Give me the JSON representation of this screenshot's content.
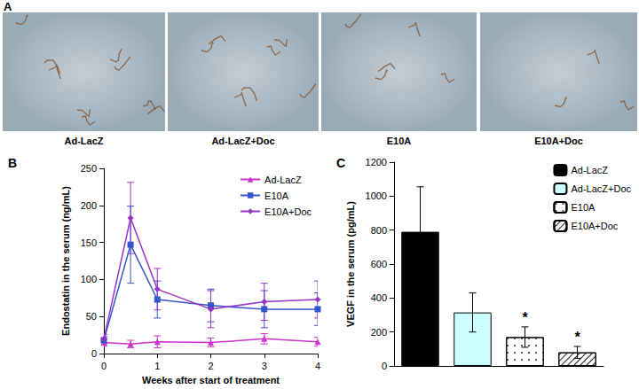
{
  "panel_a": {
    "label": "A",
    "captions": [
      "Ad-LacZ",
      "Ad-LacZ+Doc",
      "E10A",
      "E10A+Doc"
    ]
  },
  "chart_data": [
    {
      "type": "line",
      "title": "B",
      "x_label": "Weeks after start of treatment",
      "y_label": "Endostatin in the serum (ng/mL)",
      "x": [
        0,
        0.5,
        1,
        2,
        3,
        4
      ],
      "series": [
        {
          "name": "Ad-LacZ",
          "color": "#cc33cc",
          "marker": "triangle",
          "values": [
            15,
            13,
            16,
            15,
            20,
            16
          ],
          "errors": [
            5,
            5,
            8,
            6,
            7,
            6
          ]
        },
        {
          "name": "E10A",
          "color": "#3355cc",
          "marker": "square",
          "values": [
            18,
            147,
            73,
            65,
            60,
            60
          ],
          "errors": [
            5,
            52,
            25,
            22,
            25,
            22
          ]
        },
        {
          "name": "E10A+Doc",
          "color": "#9933cc",
          "marker": "diamond",
          "values": [
            20,
            183,
            87,
            60,
            70,
            73
          ],
          "errors": [
            6,
            48,
            28,
            25,
            25,
            25
          ]
        }
      ],
      "xlim": [
        0,
        4
      ],
      "xticks": [
        0,
        1,
        2,
        3,
        4
      ],
      "ylim": [
        0,
        250
      ],
      "yticks": [
        0,
        50,
        100,
        150,
        200,
        250
      ],
      "grid": false,
      "legend": "upper right"
    },
    {
      "type": "bar",
      "title": "C",
      "y_label": "VEGF in the serum (pg/mL)",
      "categories": [
        null,
        null,
        null,
        null
      ],
      "series": [
        {
          "name": "Ad-LacZ",
          "color": "#000000",
          "values": [
            790,
            null,
            null,
            null
          ],
          "errors": [
            265,
            null,
            null,
            null
          ]
        },
        {
          "name": "Ad-LacZ+Doc",
          "color": "#ccffff",
          "values": [
            null,
            315,
            null,
            null
          ],
          "errors": [
            null,
            115,
            null,
            null
          ]
        },
        {
          "name": "E10A",
          "color": "#ffffff",
          "values": [
            null,
            null,
            170,
            null
          ],
          "errors": [
            null,
            null,
            60,
            null
          ]
        },
        {
          "name": "E10A+Doc",
          "color": "#ffffff",
          "values": [
            null,
            null,
            null,
            80
          ],
          "errors": [
            null,
            null,
            null,
            35
          ]
        }
      ],
      "ylim": [
        0,
        1200
      ],
      "yticks": [
        0,
        200,
        400,
        600,
        800,
        1000,
        1200
      ],
      "grid": false,
      "legend": "upper right",
      "tick_labels": "y",
      "annotations": [
        {
          "text": "*",
          "series": "E10A"
        },
        {
          "text": "*",
          "series": "E10A+Doc"
        }
      ]
    }
  ]
}
